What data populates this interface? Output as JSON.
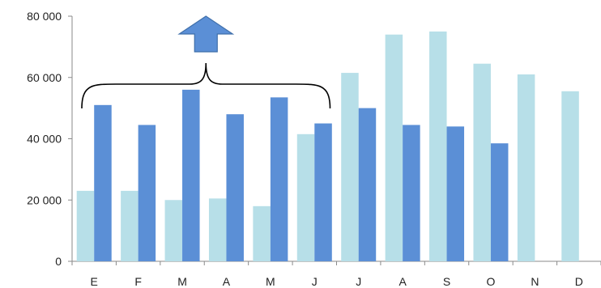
{
  "chart_data": {
    "type": "bar",
    "categories": [
      "E",
      "F",
      "M",
      "A",
      "M",
      "J",
      "J",
      "A",
      "S",
      "O",
      "N",
      "D"
    ],
    "series": [
      {
        "values": [
          23000,
          23000,
          20000,
          20500,
          18000,
          41500,
          61500,
          74000,
          75000,
          64500,
          61000,
          55500
        ],
        "color": "#b7dfe8"
      },
      {
        "values": [
          51000,
          44500,
          56000,
          48000,
          53500,
          45000,
          50000,
          44500,
          44000,
          38500,
          null,
          null
        ],
        "color": "#5b8fd6"
      }
    ],
    "ylim": [
      0,
      80000
    ],
    "yticks": [
      "0",
      "20 000",
      "40 000",
      "60 000",
      "80 000"
    ],
    "ytick_values": [
      0,
      20000,
      40000,
      60000,
      80000
    ],
    "grid": false,
    "annotations": [
      {
        "kind": "brace",
        "from_category": 0,
        "to_category": 5
      },
      {
        "kind": "up-arrow",
        "color": "#5b8fd6"
      }
    ]
  }
}
